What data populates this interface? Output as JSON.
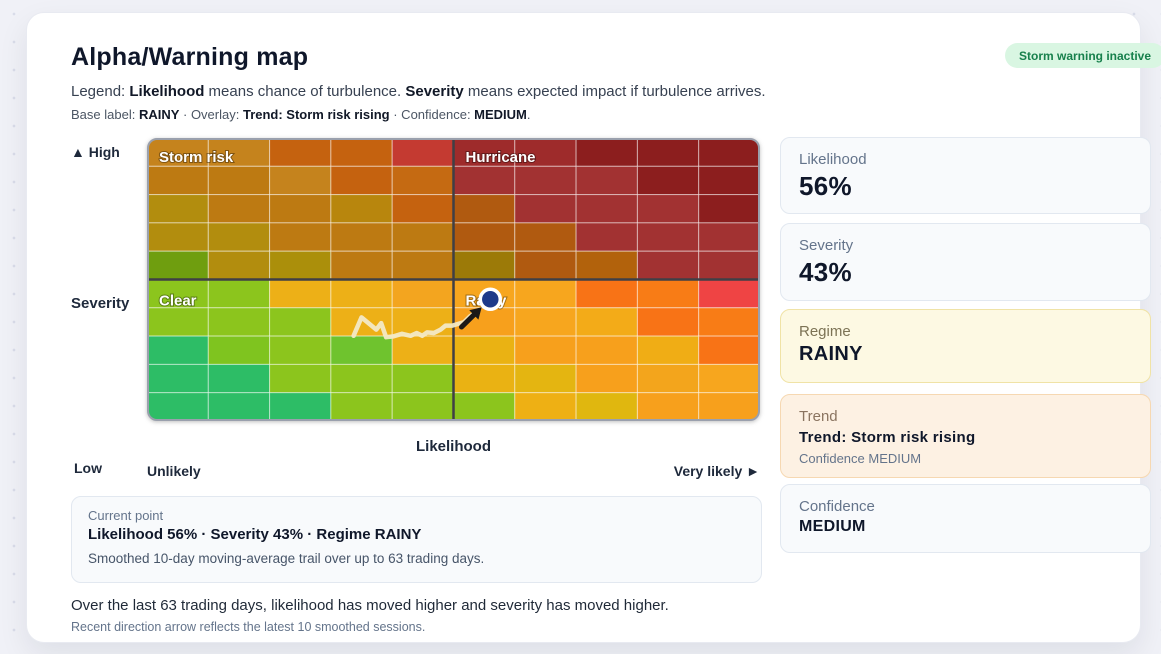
{
  "page": {
    "title": "Alpha/Warning map",
    "badge": "Storm warning inactive",
    "legend_segments": [
      [
        "Legend: ",
        0
      ],
      [
        "Likelihood",
        1
      ],
      [
        " means chance of turbulence. ",
        0
      ],
      [
        "Severity",
        1
      ],
      [
        " means expected impact if turbulence arrives.",
        0
      ]
    ],
    "base_segments": [
      [
        "Base label: ",
        0
      ],
      [
        "RAINY",
        1
      ],
      [
        " · Overlay: ",
        0
      ],
      [
        "Trend: Storm risk rising",
        1
      ],
      [
        " · Confidence: ",
        0
      ],
      [
        "MEDIUM",
        1
      ],
      [
        ".",
        0
      ]
    ],
    "summary": "Over the last 63 trading days, likelihood has moved higher and severity has moved higher.",
    "footnote": "Recent direction arrow reflects the latest 10 smoothed sessions."
  },
  "axes": {
    "y_high": "▲ High",
    "y_title": "Severity",
    "y_low": "Low",
    "x_title": "Likelihood",
    "x_min": "Unlikely",
    "x_max": "Very likely ►"
  },
  "current_panel": {
    "label": "Current point",
    "value_line": "Likelihood 56% · Severity 43% · Regime RAINY",
    "note": "Smoothed 10-day moving-average trail over up to 63 trading days."
  },
  "stats": [
    {
      "label": "Likelihood",
      "value": "56%"
    },
    {
      "label": "Severity",
      "value": "43%"
    },
    {
      "label": "Regime",
      "value": "RAINY"
    },
    {
      "label": "Trend",
      "value": "Trend: Storm risk rising",
      "sub": "Confidence MEDIUM"
    },
    {
      "label": "Confidence",
      "value": "MEDIUM"
    }
  ],
  "chart_data": {
    "type": "heatmap",
    "title": "Alpha/Warning map",
    "xlabel": "Likelihood",
    "ylabel": "Severity",
    "x_range_labels": [
      "Unlikely",
      "Very likely"
    ],
    "y_range_labels": [
      "Low",
      "High"
    ],
    "grid": {
      "cols": 10,
      "rows": 10
    },
    "cell_colors": [
      [
        "#c5831d",
        "#c5831d",
        "#c5620f",
        "#c5620f",
        "#c43a31",
        "#9e2b2b",
        "#9e2b2b",
        "#8c1e1e",
        "#8c1e1e",
        "#8c1e1e"
      ],
      [
        "#bd7a12",
        "#bd7a12",
        "#c5831d",
        "#c5620f",
        "#c56a12",
        "#a23232",
        "#a23232",
        "#a23232",
        "#8c1e1e",
        "#8c1e1e"
      ],
      [
        "#b28d0e",
        "#bd7a12",
        "#bd7a12",
        "#b8860d",
        "#c5620f",
        "#b05a10",
        "#a23232",
        "#a23232",
        "#a23232",
        "#8c1e1e"
      ],
      [
        "#b28d0e",
        "#b28d0e",
        "#bd7a12",
        "#bd7a12",
        "#bd7a12",
        "#b05a10",
        "#b05a10",
        "#a23232",
        "#a23232",
        "#a23232"
      ],
      [
        "#6f9e0f",
        "#b28d0e",
        "#ab8f0b",
        "#bd7a12",
        "#bd7a12",
        "#9c7a08",
        "#b05a10",
        "#b2620c",
        "#a23232",
        "#a23232"
      ],
      [
        "#8cc51d",
        "#8cc51d",
        "#edb017",
        "#edb017",
        "#f3a51f",
        "#f7a61e",
        "#f7a61e",
        "#f87316",
        "#f87c16",
        "#ef4444"
      ],
      [
        "#8cc51d",
        "#8cc51d",
        "#8cc51d",
        "#edb017",
        "#edb017",
        "#f7a01c",
        "#f7a61e",
        "#f3ab18",
        "#f87316",
        "#f87c16"
      ],
      [
        "#2dbd66",
        "#7fc41f",
        "#8cc51d",
        "#6fc32e",
        "#edb017",
        "#eab213",
        "#f7a01c",
        "#f7a01c",
        "#f0ad15",
        "#f87316"
      ],
      [
        "#2dbd66",
        "#2dbd66",
        "#8cc51d",
        "#8cc51d",
        "#8cc51d",
        "#eab213",
        "#e4b511",
        "#f7a01c",
        "#f3a51c",
        "#f7a61e"
      ],
      [
        "#2dbd66",
        "#2dbd66",
        "#2dbd66",
        "#8cc51d",
        "#8cc51d",
        "#8cc51d",
        "#eeb014",
        "#e0b70f",
        "#f7a01c",
        "#f7a01c"
      ]
    ],
    "quadrants": [
      {
        "label": "Storm risk",
        "position": "top-left"
      },
      {
        "label": "Hurricane",
        "position": "top-right"
      },
      {
        "label": "Clear",
        "position": "bottom-left"
      },
      {
        "label": "Rainy",
        "position": "bottom-right"
      }
    ],
    "current_point": {
      "likelihood_pct": 56,
      "severity_pct": 43,
      "regime": "RAINY"
    },
    "trail_points_likelihood_severity_pct": [
      [
        33.7,
        30.1
      ],
      [
        35.0,
        36.6
      ],
      [
        37.4,
        32.3
      ],
      [
        38.2,
        34.6
      ],
      [
        39.0,
        29.6
      ],
      [
        40.2,
        29.9
      ],
      [
        41.6,
        30.8
      ],
      [
        43.0,
        30.1
      ],
      [
        44.0,
        31.1
      ],
      [
        44.9,
        30.1
      ],
      [
        45.7,
        31.3
      ],
      [
        46.8,
        31.1
      ],
      [
        47.9,
        32.3
      ],
      [
        48.7,
        33.7
      ],
      [
        49.8,
        33.7
      ],
      [
        50.9,
        34.4
      ],
      [
        51.7,
        34.9
      ],
      [
        52.7,
        37.0
      ],
      [
        53.3,
        37.8
      ]
    ],
    "direction_arrow": {
      "from": [
        51.3,
        33.2
      ],
      "to": [
        54.6,
        40.2
      ]
    },
    "colors": {
      "trail": "#f3e9c6",
      "arrow": "#1c1917",
      "marker_fill": "#1e3a8a",
      "marker_ring": "#ffffff",
      "divider": "#3f3f46",
      "border": "#9aa0ad",
      "cell_grid_line": "rgba(255,255,255,0.5)"
    }
  }
}
